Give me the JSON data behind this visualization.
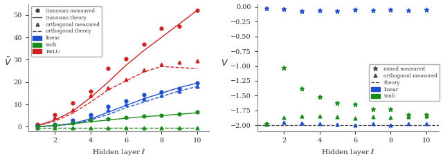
{
  "left": {
    "xticks": [
      2,
      4,
      6,
      8,
      10
    ],
    "ylim": [
      -2,
      55
    ],
    "yticks": [
      0,
      10,
      20,
      30,
      40,
      50
    ],
    "xlabel": "Hidden layer $\\ell$",
    "ylabel": "$\\tilde{V}$",
    "colors": {
      "linear": "#1f4fcf",
      "tanh": "#1a8c1a",
      "relu": "#cc2222"
    },
    "gauss_measured_linear": [
      0.3,
      1.2,
      3.0,
      5.5,
      9.0,
      11.5,
      14.5,
      15.5,
      17.0,
      19.5
    ],
    "gauss_theory_linear": [
      0.1,
      0.5,
      1.5,
      3.5,
      6.5,
      9.5,
      12.5,
      15.0,
      17.5,
      19.5
    ],
    "orth_measured_linear": [
      0.2,
      0.8,
      2.5,
      4.5,
      7.5,
      10.0,
      12.5,
      14.0,
      16.0,
      18.0
    ],
    "orth_theory_linear": [
      0.08,
      0.4,
      1.2,
      3.0,
      5.5,
      8.5,
      11.0,
      13.5,
      16.0,
      18.0
    ],
    "gauss_measured_tanh": [
      0.2,
      0.8,
      1.8,
      2.8,
      3.5,
      4.2,
      4.8,
      5.2,
      5.8,
      6.5
    ],
    "gauss_theory_tanh": [
      0.1,
      0.5,
      1.3,
      2.2,
      3.0,
      3.8,
      4.5,
      5.0,
      5.6,
      6.2
    ],
    "orth_measured_tanh": [
      -0.5,
      -0.5,
      -0.5,
      -0.5,
      -0.5,
      -0.5,
      -0.5,
      -0.5,
      -0.5,
      -0.5
    ],
    "orth_theory_tanh": [
      -0.5,
      -0.5,
      -0.5,
      -0.5,
      -0.5,
      -0.5,
      -0.5,
      -0.5,
      -0.5,
      -0.5
    ],
    "gauss_measured_relu": [
      1.0,
      5.5,
      10.5,
      16.0,
      26.0,
      30.5,
      37.0,
      44.0,
      45.0,
      52.0
    ],
    "gauss_theory_relu": [
      0.5,
      3.0,
      7.0,
      13.0,
      20.0,
      27.5,
      34.0,
      40.0,
      46.0,
      52.0
    ],
    "orth_measured_relu": [
      0.8,
      4.0,
      7.5,
      14.0,
      17.5,
      21.0,
      25.5,
      28.0,
      29.0,
      29.5
    ],
    "orth_theory_relu": [
      0.4,
      2.5,
      6.0,
      11.0,
      16.5,
      20.5,
      24.5,
      27.0,
      26.5,
      26.0
    ],
    "x": [
      1,
      2,
      3,
      4,
      5,
      6,
      7,
      8,
      9,
      10
    ]
  },
  "right": {
    "xticks": [
      2,
      4,
      6,
      8,
      10
    ],
    "ylim": [
      -2.1,
      0.05
    ],
    "yticks": [
      0.0,
      -0.25,
      -0.5,
      -0.75,
      -1.0,
      -1.25,
      -1.5,
      -1.75,
      -2.0
    ],
    "xlabel": "Hidden layer $\\ell$",
    "ylabel": "$V$",
    "colors": {
      "linear": "#1f4fcf",
      "tanh": "#1a8c1a"
    },
    "theory_val": -2.0,
    "mixed_linear": [
      -0.03,
      -0.04,
      -0.07,
      -0.06,
      -0.07,
      -0.05,
      -0.06,
      -0.05,
      -0.06,
      -0.05
    ],
    "orth_linear": [
      -1.97,
      -1.95,
      -1.96,
      -1.97,
      -1.98,
      -2.0,
      -1.97,
      -2.0,
      -1.97,
      -1.97
    ],
    "mixed_tanh": [
      -1.97,
      -1.03,
      -1.38,
      -1.52,
      -1.62,
      -1.65,
      -1.73,
      -1.73,
      -1.82,
      -1.82
    ],
    "orth_tanh": [
      -1.98,
      -1.87,
      -1.85,
      -1.84,
      -1.86,
      -1.88,
      -1.86,
      -1.87,
      -1.86,
      -1.85
    ],
    "x": [
      1,
      2,
      3,
      4,
      5,
      6,
      7,
      8,
      9,
      10
    ]
  }
}
